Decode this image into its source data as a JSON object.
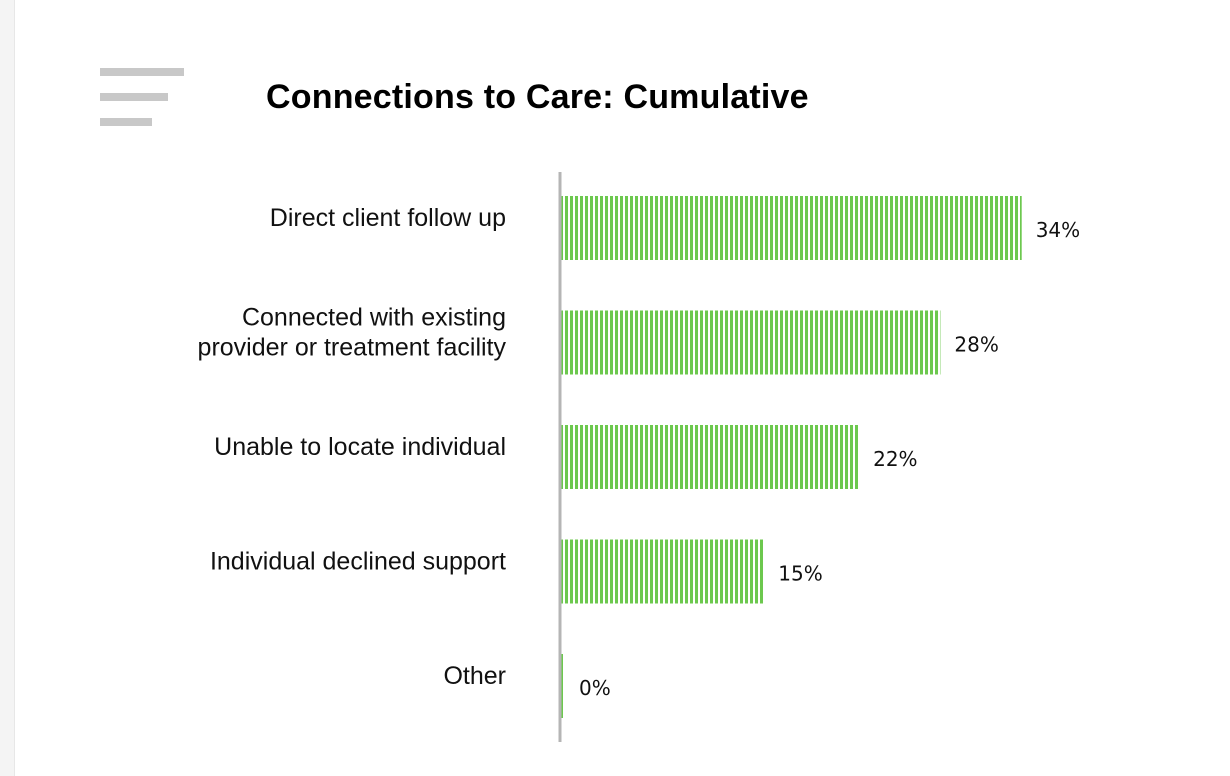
{
  "chart_data": {
    "type": "bar",
    "orientation": "horizontal",
    "title": "Connections to Care: Cumulative",
    "categories": [
      "Direct client follow up",
      "Connected with existing provider or treatment facility",
      "Unable to locate individual",
      "Individual declined support",
      "Other"
    ],
    "category_lines": [
      [
        "Direct client follow up"
      ],
      [
        "Connected with existing",
        "provider or treatment facility"
      ],
      [
        "Unable to locate individual"
      ],
      [
        "Individual declined support"
      ],
      [
        "Other"
      ]
    ],
    "values": [
      34,
      28,
      22,
      15,
      0
    ],
    "value_labels": [
      "34%",
      "28%",
      "22%",
      "15%",
      "0%"
    ],
    "unit": "%",
    "xlim": [
      0,
      40
    ],
    "grid": false,
    "legend": "none",
    "bar_color": "#6cc84e",
    "bar_pattern": "vertical-stripes",
    "axis_color": "#b5b5b5"
  }
}
